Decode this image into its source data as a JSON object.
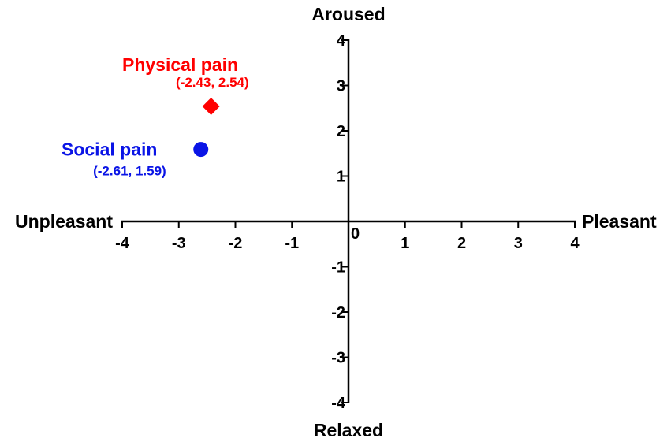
{
  "chart_data": {
    "type": "scatter",
    "xlim": [
      -4,
      4
    ],
    "ylim": [
      -4,
      4
    ],
    "x_ticks": [
      "-4",
      "-3",
      "-2",
      "-1",
      "1",
      "2",
      "3",
      "4"
    ],
    "y_ticks": [
      "4",
      "3",
      "2",
      "1",
      "-1",
      "-2",
      "-3",
      "-4"
    ],
    "origin_label": "0",
    "axis_labels": {
      "left": "Unpleasant",
      "right": "Pleasant",
      "top": "Aroused",
      "bottom": "Relaxed"
    },
    "grid": false,
    "series": [
      {
        "name": "Physical pain",
        "coord_label": "(-2.43, 2.54)",
        "x": -2.43,
        "y": 2.54,
        "marker": "diamond",
        "color": "#ff0000"
      },
      {
        "name": "Social pain",
        "coord_label": "(-2.61, 1.59)",
        "x": -2.61,
        "y": 1.59,
        "marker": "circle",
        "color": "#0a14e6"
      }
    ]
  }
}
